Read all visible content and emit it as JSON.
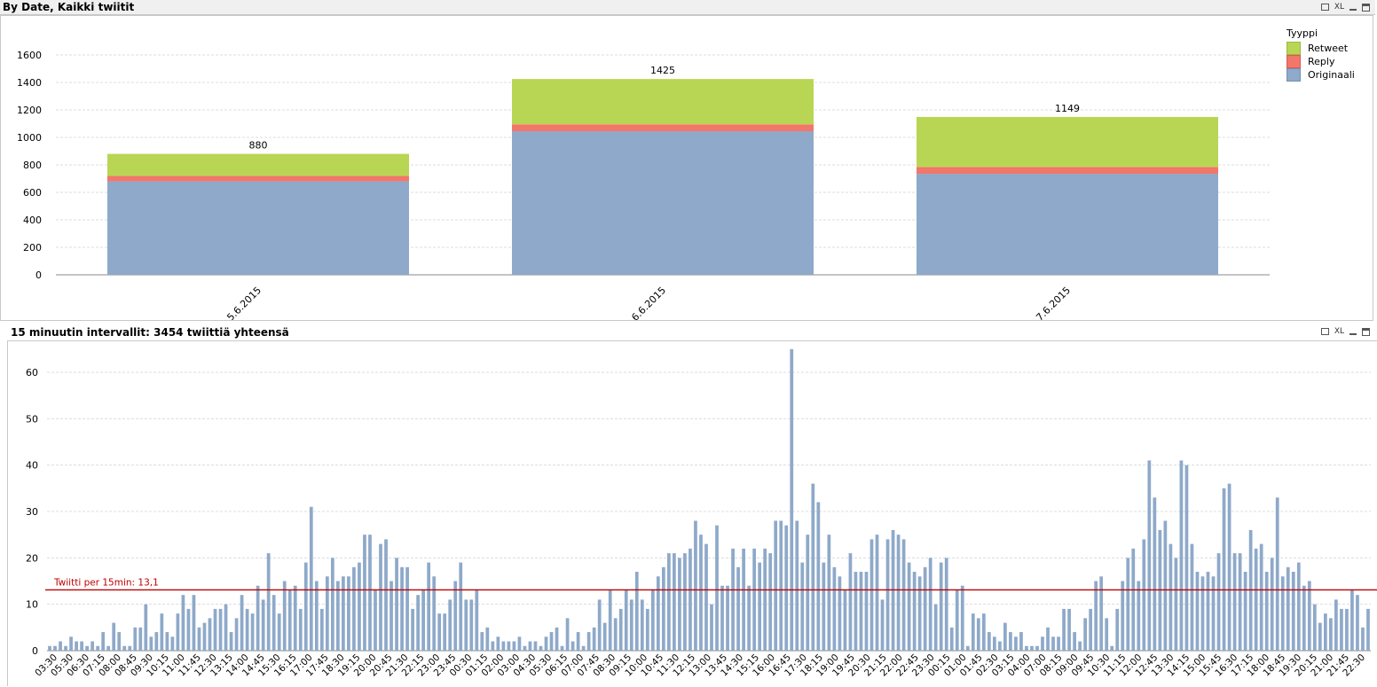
{
  "panel1": {
    "title": "By Date, Kaikki twiitit",
    "icons": {
      "print": "print-icon",
      "xl": "XL",
      "minimize": "minimize-icon",
      "maximize": "maximize-icon"
    }
  },
  "panel2": {
    "title": "15 minuutin intervallit: 3454 twiittiä yhteensä",
    "icons": {
      "print": "print-icon",
      "xl": "XL",
      "minimize": "minimize-icon",
      "maximize": "maximize-icon"
    }
  },
  "colors": {
    "retweet": "#b8d654",
    "reply": "#f2766a",
    "originaali": "#8ea9c9",
    "bar2": "#8ea9c9",
    "refline": "#c00000"
  },
  "legend": {
    "title": "Tyyppi",
    "items": [
      {
        "label": "Retweet",
        "key": "retweet"
      },
      {
        "label": "Reply",
        "key": "reply"
      },
      {
        "label": "Originaali",
        "key": "originaali"
      }
    ]
  },
  "chart_data": [
    {
      "type": "bar",
      "stacked": true,
      "categories": [
        "5.6.2015",
        "6.6.2015",
        "7.6.2015"
      ],
      "series": [
        {
          "name": "Originaali",
          "values": [
            680,
            1045,
            735
          ]
        },
        {
          "name": "Reply",
          "values": [
            40,
            50,
            50
          ]
        },
        {
          "name": "Retweet",
          "values": [
            160,
            330,
            364
          ]
        }
      ],
      "totals": [
        880,
        1425,
        1149
      ],
      "total_labels": [
        "880",
        "1425",
        "1149"
      ],
      "ylim": [
        0,
        1700
      ],
      "yticks": [
        0,
        200,
        400,
        600,
        800,
        1000,
        1200,
        1400,
        1600
      ],
      "ytick_labels": [
        "0",
        "200",
        "400",
        "600",
        "800",
        "1000",
        "1200",
        "1400",
        "1600"
      ],
      "grid": true,
      "legend_position": "top-right"
    },
    {
      "type": "bar",
      "values": [
        1,
        1,
        2,
        1,
        3,
        2,
        2,
        1,
        2,
        1,
        4,
        1,
        6,
        4,
        1,
        1,
        5,
        5,
        10,
        3,
        4,
        8,
        4,
        3,
        8,
        12,
        9,
        12,
        5,
        6,
        7,
        9,
        9,
        10,
        4,
        7,
        12,
        9,
        8,
        14,
        11,
        21,
        12,
        8,
        15,
        13,
        14,
        9,
        19,
        31,
        15,
        9,
        16,
        20,
        15,
        16,
        16,
        18,
        19,
        25,
        25,
        13,
        23,
        24,
        15,
        20,
        18,
        18,
        9,
        12,
        13,
        19,
        16,
        8,
        8,
        11,
        15,
        19,
        11,
        11,
        13,
        4,
        5,
        2,
        3,
        2,
        2,
        2,
        3,
        1,
        2,
        2,
        1,
        3,
        4,
        5,
        1,
        7,
        2,
        4,
        1,
        4,
        5,
        11,
        6,
        13,
        7,
        9,
        13,
        11,
        17,
        11,
        9,
        13,
        16,
        18,
        21,
        21,
        20,
        21,
        22,
        28,
        25,
        23,
        10,
        27,
        14,
        14,
        22,
        18,
        22,
        14,
        22,
        19,
        22,
        21,
        28,
        28,
        27,
        65,
        28,
        19,
        25,
        36,
        32,
        19,
        25,
        18,
        16,
        13,
        21,
        17,
        17,
        17,
        24,
        25,
        11,
        24,
        26,
        25,
        24,
        19,
        17,
        16,
        18,
        20,
        10,
        19,
        20,
        5,
        13,
        14,
        1,
        8,
        7,
        8,
        4,
        3,
        2,
        6,
        4,
        3,
        4,
        1,
        1,
        1,
        3,
        5,
        3,
        3,
        9,
        9,
        4,
        2,
        7,
        9,
        15,
        16,
        7,
        1,
        9,
        15,
        20,
        22,
        15,
        24,
        41,
        33,
        26,
        28,
        23,
        20,
        41,
        40,
        23,
        17,
        16,
        17,
        16,
        21,
        35,
        36,
        21,
        21,
        17,
        26,
        22,
        23,
        17,
        20,
        33,
        16,
        18,
        17,
        19,
        14,
        15,
        10,
        6,
        8,
        7,
        11,
        9,
        9,
        13,
        12,
        5,
        9
      ],
      "xtick_labels": [
        "03:30",
        "05:30",
        "06:30",
        "07:15",
        "08:00",
        "08:45",
        "09:30",
        "10:15",
        "11:00",
        "11:45",
        "12:30",
        "13:15",
        "14:00",
        "14:45",
        "15:30",
        "16:15",
        "17:00",
        "17:45",
        "18:30",
        "19:15",
        "20:00",
        "20:45",
        "21:30",
        "22:15",
        "23:00",
        "23:45",
        "00:30",
        "01:15",
        "02:00",
        "03:00",
        "04:30",
        "05:30",
        "06:15",
        "07:00",
        "07:45",
        "08:30",
        "09:15",
        "10:00",
        "10:45",
        "11:30",
        "12:15",
        "13:00",
        "13:45",
        "14:30",
        "15:15",
        "16:00",
        "16:45",
        "17:30",
        "18:15",
        "19:00",
        "19:45",
        "20:30",
        "21:15",
        "22:00",
        "22:45",
        "23:30",
        "00:15",
        "01:00",
        "01:45",
        "02:30",
        "03:15",
        "04:00",
        "07:00",
        "08:15",
        "09:00",
        "09:45",
        "10:30",
        "11:15",
        "12:00",
        "12:45",
        "13:30",
        "14:15",
        "15:00",
        "15:45",
        "16:30",
        "17:15",
        "18:00",
        "18:45",
        "19:30",
        "20:15",
        "21:00",
        "21:45",
        "22:30"
      ],
      "ylim": [
        0,
        65
      ],
      "yticks": [
        0,
        10,
        20,
        30,
        40,
        50,
        60
      ],
      "ytick_labels": [
        "0",
        "10",
        "20",
        "30",
        "40",
        "50",
        "60"
      ],
      "grid": true,
      "reference_line": {
        "value": 13.1,
        "label": "Twiitti per 15min: 13,1"
      }
    }
  ]
}
